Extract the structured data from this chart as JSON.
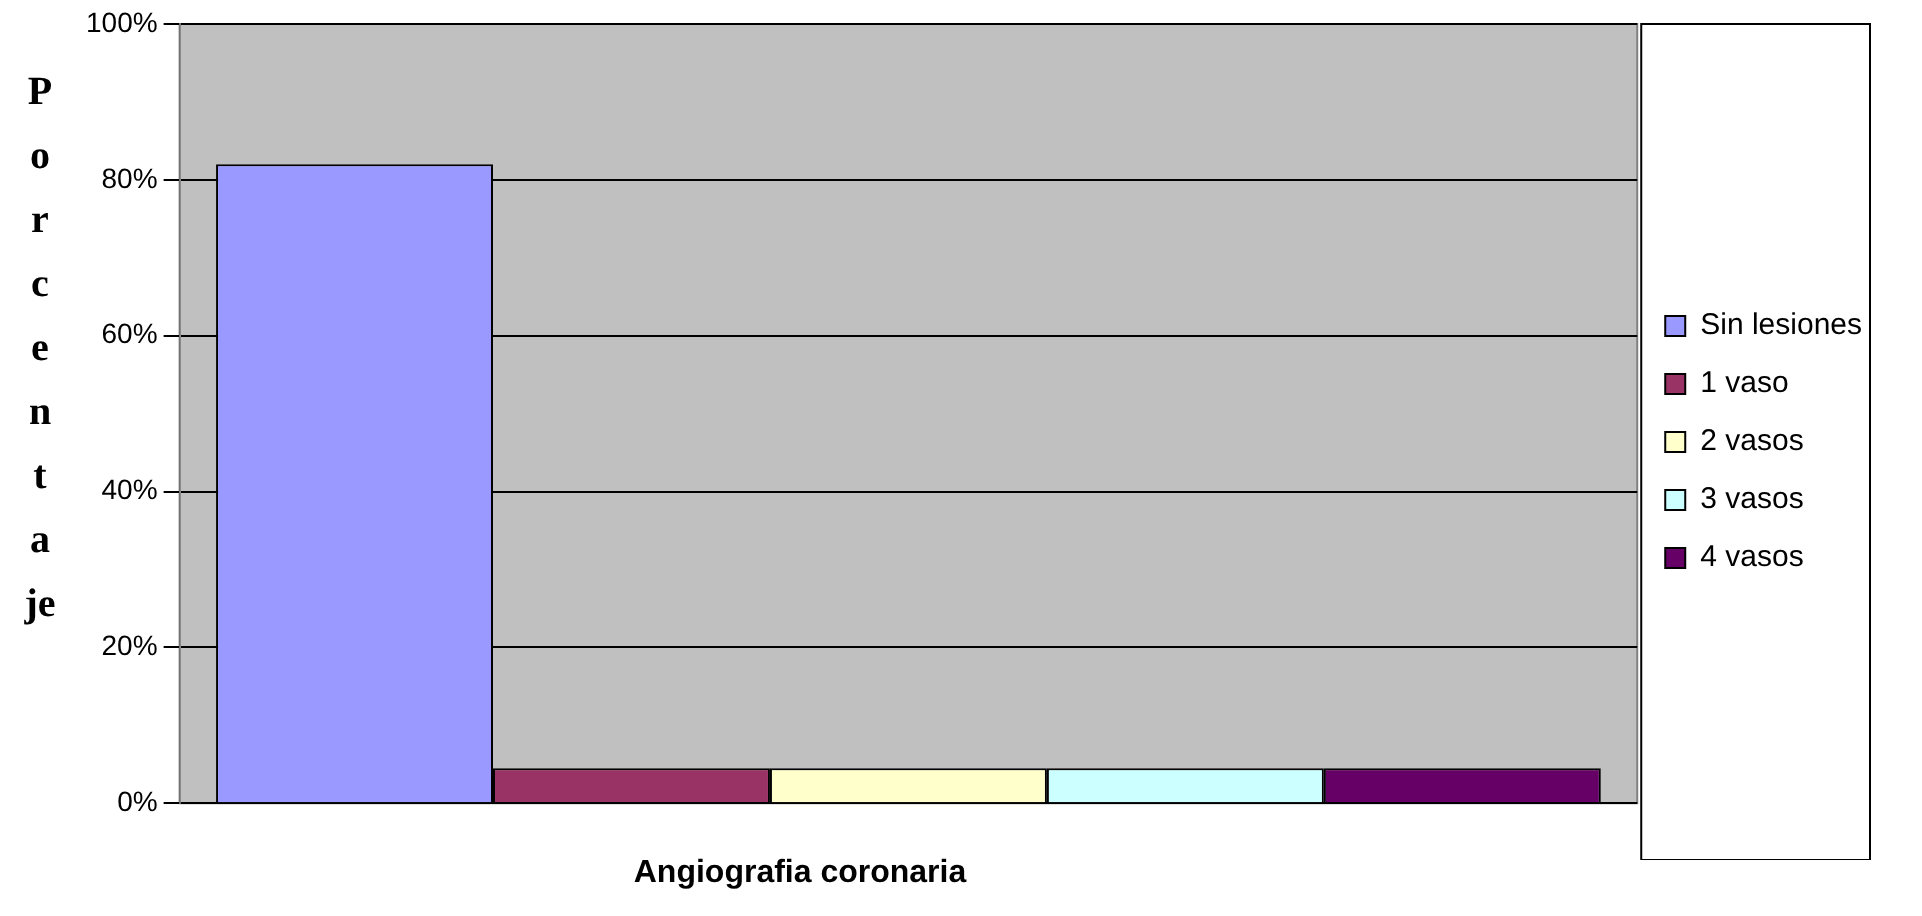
{
  "chart_data": {
    "type": "bar",
    "xlabel": "Angiografia coronaria",
    "ylabel": "Porcentaje",
    "categories": [
      null
    ],
    "series": [
      {
        "name": "Sin lesiones",
        "color": "#9999ff",
        "values": [
          82
        ]
      },
      {
        "name": "1 vaso",
        "color": "#993366",
        "values": [
          4.5
        ]
      },
      {
        "name": "2 vasos",
        "color": "#ffffcc",
        "values": [
          4.5
        ]
      },
      {
        "name": "3 vasos",
        "color": "#ccffff",
        "values": [
          4.5
        ]
      },
      {
        "name": "4 vasos",
        "color": "#660066",
        "values": [
          4.5
        ]
      }
    ],
    "ylim": [
      0,
      100
    ],
    "yticks": [
      {
        "value": 0,
        "label": "0%"
      },
      {
        "value": 20,
        "label": "20%"
      },
      {
        "value": 40,
        "label": "40%"
      },
      {
        "value": 60,
        "label": "60%"
      },
      {
        "value": 80,
        "label": "80%"
      },
      {
        "value": 100,
        "label": "100%"
      }
    ],
    "grid": "y",
    "legend": "right"
  }
}
